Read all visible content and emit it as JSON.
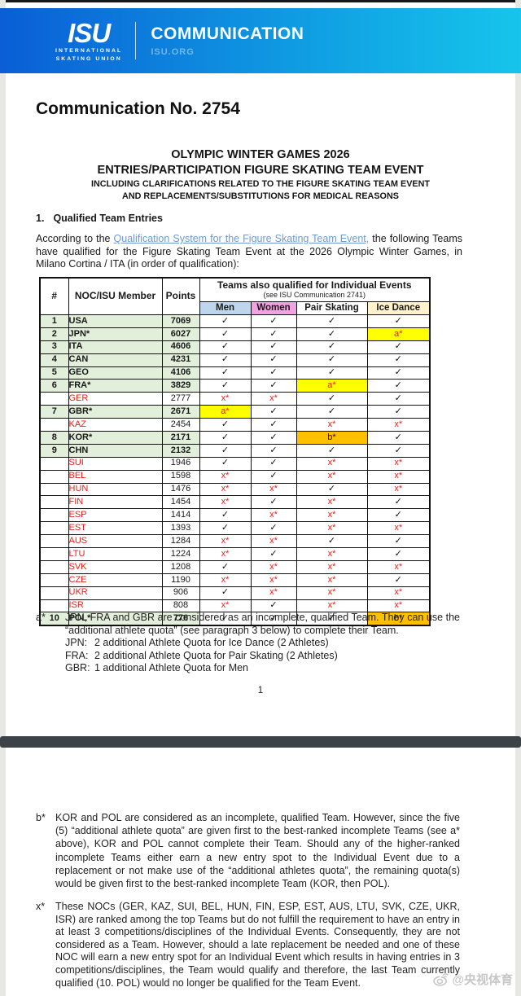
{
  "colors": {
    "banner_left": "#0a5ed6",
    "banner_mid": "#0f9ae2",
    "banner_right": "#16c5eb",
    "header_men": "#bdd6ee",
    "header_women": "#f2a2e0",
    "header_pair": "#ffffff",
    "header_ice": "#fff2cc",
    "row_qualified": "#e2efda",
    "red": "#e8211d",
    "link": "#6b9bd2",
    "bar": "#3c4248",
    "watermark": "#b9b9b9"
  },
  "banner": {
    "logo_main": "ISU",
    "logo_sub1": "INTERNATIONAL",
    "logo_sub2": "SKATING UNION",
    "title": "COMMUNICATION",
    "site": "ISU.ORG"
  },
  "doc": {
    "title": "Communication No. 2754",
    "heading_line1": "OLYMPIC WINTER GAMES 2026",
    "heading_line2": "ENTRIES/PARTICIPATION FIGURE SKATING TEAM EVENT",
    "heading_line3": "INCLUDING CLARIFICATIONS RELATED TO THE FIGURE SKATING TEAM EVENT",
    "heading_line4": "AND REPLACEMENTS/SUBSTITUTIONS FOR MEDICAL REASONS",
    "section1_num": "1.",
    "section1_title": "Qualified Team Entries",
    "intro_pre": "According to the ",
    "intro_link": "Qualification System for the Figure Skating Team Event,",
    "intro_post": " the following Teams have qualified for the Figure Skating Team Event at the 2026 Olympic Winter Games, in Milano Cortina / ITA (in order of qualification):",
    "page_number": "1"
  },
  "table": {
    "headers": {
      "rank": "#",
      "noc": "NOC/ISU Member",
      "points": "Points",
      "group_title": "Teams also qualified for Individual Events",
      "group_sub": "(see ISU Communication 2741)",
      "cols": [
        "Men",
        "Women",
        "Pair Skating",
        "Ice Dance"
      ]
    },
    "marks": {
      "check": {
        "symbol": "✓",
        "color": "#111111",
        "bg": ""
      },
      "x": {
        "symbol": "x*",
        "color": "#e8211d",
        "bg": ""
      },
      "a": {
        "symbol": "a*",
        "color": "#e8211d",
        "bg": "#ffff00"
      },
      "b": {
        "symbol": "b*",
        "color": "#111111",
        "bg": "#ffc000"
      }
    },
    "rows": [
      {
        "rank": "1",
        "noc": "USA",
        "points": "7069",
        "qualified": true,
        "cells": [
          "check",
          "check",
          "check",
          "check"
        ]
      },
      {
        "rank": "2",
        "noc": "JPN*",
        "points": "6027",
        "qualified": true,
        "cells": [
          "check",
          "check",
          "check",
          "a"
        ]
      },
      {
        "rank": "3",
        "noc": "ITA",
        "points": "4606",
        "qualified": true,
        "cells": [
          "check",
          "check",
          "check",
          "check"
        ]
      },
      {
        "rank": "4",
        "noc": "CAN",
        "points": "4231",
        "qualified": true,
        "cells": [
          "check",
          "check",
          "check",
          "check"
        ]
      },
      {
        "rank": "5",
        "noc": "GEO",
        "points": "4106",
        "qualified": true,
        "cells": [
          "check",
          "check",
          "check",
          "check"
        ]
      },
      {
        "rank": "6",
        "noc": "FRA*",
        "points": "3829",
        "qualified": true,
        "cells": [
          "check",
          "check",
          "a",
          "check"
        ]
      },
      {
        "rank": "",
        "noc": "GER",
        "points": "2777",
        "qualified": false,
        "cells": [
          "x",
          "x",
          "check",
          "check"
        ]
      },
      {
        "rank": "7",
        "noc": "GBR*",
        "points": "2671",
        "qualified": true,
        "cells": [
          "a",
          "check",
          "check",
          "check"
        ]
      },
      {
        "rank": "",
        "noc": "KAZ",
        "points": "2454",
        "qualified": false,
        "cells": [
          "check",
          "check",
          "x",
          "x"
        ]
      },
      {
        "rank": "8",
        "noc": "KOR*",
        "points": "2171",
        "qualified": true,
        "cells": [
          "check",
          "check",
          "b",
          "check"
        ]
      },
      {
        "rank": "9",
        "noc": "CHN",
        "points": "2132",
        "qualified": true,
        "cells": [
          "check",
          "check",
          "check",
          "check"
        ]
      },
      {
        "rank": "",
        "noc": "SUI",
        "points": "1946",
        "qualified": false,
        "cells": [
          "check",
          "check",
          "x",
          "x"
        ]
      },
      {
        "rank": "",
        "noc": "BEL",
        "points": "1598",
        "qualified": false,
        "cells": [
          "x",
          "check",
          "x",
          "x"
        ]
      },
      {
        "rank": "",
        "noc": "HUN",
        "points": "1476",
        "qualified": false,
        "cells": [
          "x",
          "x",
          "check",
          "x"
        ]
      },
      {
        "rank": "",
        "noc": "FIN",
        "points": "1454",
        "qualified": false,
        "cells": [
          "x",
          "check",
          "x",
          "check"
        ]
      },
      {
        "rank": "",
        "noc": "ESP",
        "points": "1414",
        "qualified": false,
        "cells": [
          "check",
          "x",
          "x",
          "check"
        ]
      },
      {
        "rank": "",
        "noc": "EST",
        "points": "1393",
        "qualified": false,
        "cells": [
          "check",
          "check",
          "x",
          "x"
        ]
      },
      {
        "rank": "",
        "noc": "AUS",
        "points": "1284",
        "qualified": false,
        "cells": [
          "x",
          "x",
          "check",
          "check"
        ]
      },
      {
        "rank": "",
        "noc": "LTU",
        "points": "1224",
        "qualified": false,
        "cells": [
          "x",
          "check",
          "x",
          "check"
        ]
      },
      {
        "rank": "",
        "noc": "SVK",
        "points": "1208",
        "qualified": false,
        "cells": [
          "check",
          "x",
          "x",
          "x"
        ]
      },
      {
        "rank": "",
        "noc": "CZE",
        "points": "1190",
        "qualified": false,
        "cells": [
          "x",
          "x",
          "x",
          "check"
        ]
      },
      {
        "rank": "",
        "noc": "UKR",
        "points": "906",
        "qualified": false,
        "cells": [
          "check",
          "x",
          "x",
          "x"
        ]
      },
      {
        "rank": "",
        "noc": "ISR",
        "points": "808",
        "qualified": false,
        "cells": [
          "x",
          "check",
          "x",
          "x"
        ]
      },
      {
        "rank": "10",
        "noc": "POL*",
        "points": "776",
        "qualified": true,
        "cells": [
          "check",
          "check",
          "check",
          "b"
        ]
      }
    ]
  },
  "footnotes": {
    "a": {
      "marker": "a*",
      "text": "JPN, FRA and GBR are considered as an incomplete, qualified Team. They can use the “additional athlete quota” (see paragraph 3 below) to complete their Team.",
      "items": [
        {
          "label": "JPN:",
          "text": "2 additional Athlete Quota for Ice Dance (2 Athletes)"
        },
        {
          "label": "FRA:",
          "text": "2 additional Athlete Quota for Pair Skating (2 Athletes)"
        },
        {
          "label": "GBR:",
          "text": "1 additional Athlete Quota for Men"
        }
      ]
    },
    "b": {
      "marker": "b*",
      "text": "KOR and POL are considered as an incomplete, qualified Team. However, since the five (5) “additional athlete quota” are given first to the best-ranked incomplete Teams (see a* above), KOR and POL cannot complete their Team. Should any of the higher-ranked incomplete Teams either earn a new entry spot to the Individual Event due to a replacement or not make use of the “additional athletes quota”, the remaining quota(s) would be given first to the best-ranked incomplete Team (KOR, then POL)."
    },
    "x": {
      "marker": "x*",
      "text": "These NOCs (GER, KAZ, SUI, BEL, HUN, FIN, ESP, EST, AUS, LTU, SVK, CZE, UKR, ISR) are ranked among the top Teams but do not fulfill the requirement to have an entry in at least 3 competitions/disciplines of the Individual Events. Consequently, they are not considered as a Team. However, should a late replacement be needed and one of these NOC will earn a new entry spot for an Individual Event which results in having entries in 3 competitions/disciplines, the Team would qualify and therefore, the last Team currently qualified (10. POL) would no longer be qualified for the Team Event."
    }
  },
  "watermark": {
    "text": "@央视体育"
  }
}
